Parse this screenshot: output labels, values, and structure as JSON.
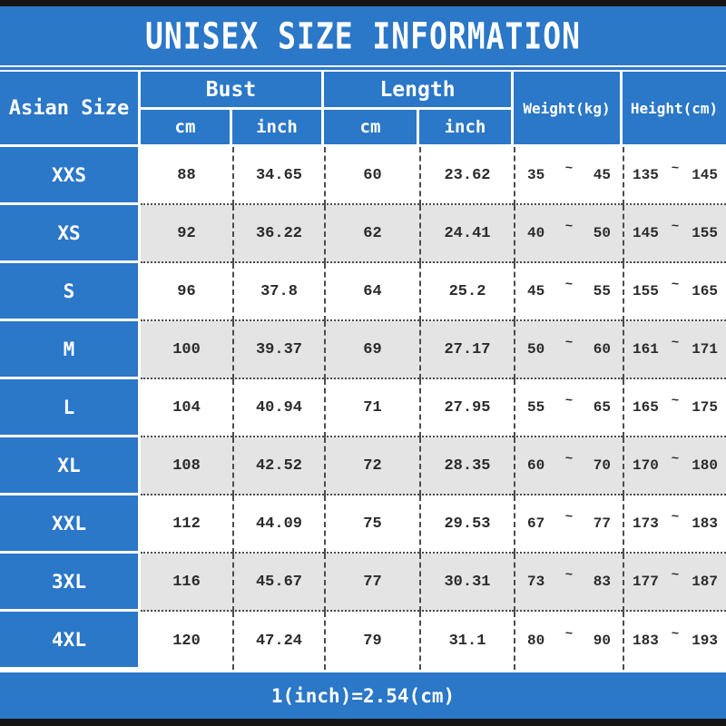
{
  "title": "UNISEX SIZE INFORMATION",
  "footer_note": "1(inch)=2.54(cm)",
  "colors": {
    "accent_blue": "#2b77c8",
    "row_base": "#ffffff",
    "row_alt": "#e4e4e4",
    "frame_bar": "#151515",
    "data_text": "#2b2b2b",
    "header_text": "#ffffff"
  },
  "table": {
    "headers": {
      "size_col": "Asian Size",
      "bust_group": "Bust",
      "length_group": "Length",
      "weight_col": "Weight(kg)",
      "height_col": "Height(cm)",
      "unit_cm": "cm",
      "unit_inch": "inch"
    },
    "range_separator": "~",
    "rows": [
      {
        "size": "XXS",
        "bust_cm": "88",
        "bust_inch": "34.65",
        "length_cm": "60",
        "length_inch": "23.62",
        "weight": {
          "min": "35",
          "max": "45"
        },
        "height": {
          "min": "135",
          "max": "145"
        }
      },
      {
        "size": "XS",
        "bust_cm": "92",
        "bust_inch": "36.22",
        "length_cm": "62",
        "length_inch": "24.41",
        "weight": {
          "min": "40",
          "max": "50"
        },
        "height": {
          "min": "145",
          "max": "155"
        }
      },
      {
        "size": "S",
        "bust_cm": "96",
        "bust_inch": "37.8",
        "length_cm": "64",
        "length_inch": "25.2",
        "weight": {
          "min": "45",
          "max": "55"
        },
        "height": {
          "min": "155",
          "max": "165"
        }
      },
      {
        "size": "M",
        "bust_cm": "100",
        "bust_inch": "39.37",
        "length_cm": "69",
        "length_inch": "27.17",
        "weight": {
          "min": "50",
          "max": "60"
        },
        "height": {
          "min": "161",
          "max": "171"
        }
      },
      {
        "size": "L",
        "bust_cm": "104",
        "bust_inch": "40.94",
        "length_cm": "71",
        "length_inch": "27.95",
        "weight": {
          "min": "55",
          "max": "65"
        },
        "height": {
          "min": "165",
          "max": "175"
        }
      },
      {
        "size": "XL",
        "bust_cm": "108",
        "bust_inch": "42.52",
        "length_cm": "72",
        "length_inch": "28.35",
        "weight": {
          "min": "60",
          "max": "70"
        },
        "height": {
          "min": "170",
          "max": "180"
        }
      },
      {
        "size": "XXL",
        "bust_cm": "112",
        "bust_inch": "44.09",
        "length_cm": "75",
        "length_inch": "29.53",
        "weight": {
          "min": "67",
          "max": "77"
        },
        "height": {
          "min": "173",
          "max": "183"
        }
      },
      {
        "size": "3XL",
        "bust_cm": "116",
        "bust_inch": "45.67",
        "length_cm": "77",
        "length_inch": "30.31",
        "weight": {
          "min": "73",
          "max": "83"
        },
        "height": {
          "min": "177",
          "max": "187"
        }
      },
      {
        "size": "4XL",
        "bust_cm": "120",
        "bust_inch": "47.24",
        "length_cm": "79",
        "length_inch": "31.1",
        "weight": {
          "min": "80",
          "max": "90"
        },
        "height": {
          "min": "183",
          "max": "193"
        }
      }
    ]
  }
}
